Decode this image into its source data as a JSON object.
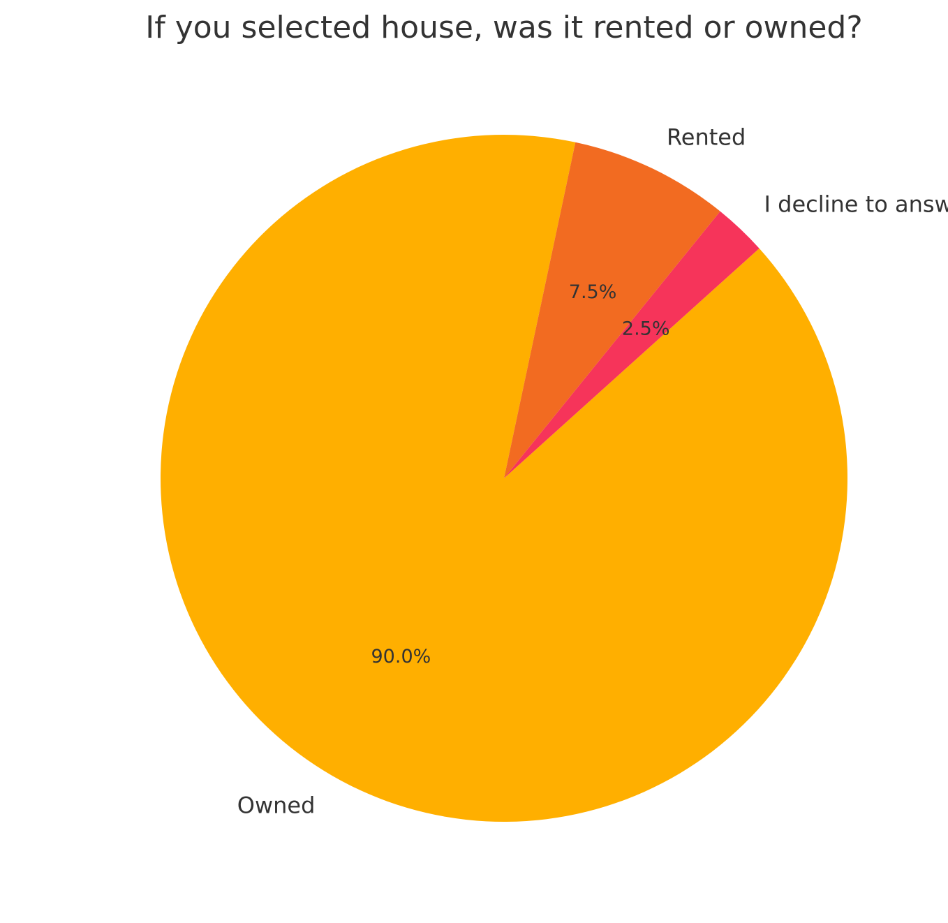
{
  "chart_data": {
    "type": "pie",
    "title": "If you selected house, was it rented or owned?",
    "categories": [
      "Owned",
      "I decline to answer",
      "Rented"
    ],
    "values": [
      90.0,
      2.5,
      7.5
    ],
    "value_labels": [
      "90.0%",
      "2.5%",
      "7.5%"
    ],
    "colors": [
      "#FFAF00",
      "#F6345A",
      "#F26B21"
    ],
    "start_angle_deg": 78,
    "direction": "counterclockwise",
    "legend": "none"
  }
}
